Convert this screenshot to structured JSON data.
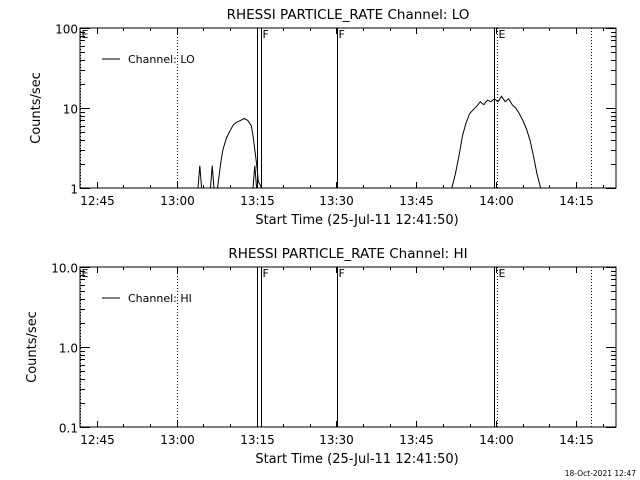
{
  "footer": {
    "timestamp": "18-Oct-2021 12:47"
  },
  "chart_data": [
    {
      "type": "line",
      "title": "RHESSI PARTICLE_RATE Channel: LO",
      "xlabel": "Start Time (25-Jul-11 12:41:50)",
      "ylabel": "Counts/sec",
      "yscale": "log",
      "xlim": [
        "12:41:50",
        "14:22:30"
      ],
      "ylim": [
        1,
        100
      ],
      "x_ticks": [
        "12:45",
        "13:00",
        "13:15",
        "13:30",
        "13:45",
        "14:00",
        "14:15"
      ],
      "y_ticks": [
        "1",
        "10",
        "100"
      ],
      "legend": {
        "entries": [
          "Channel: LO"
        ],
        "placement": "top-left"
      },
      "grid": false,
      "markers": [
        {
          "label": "E",
          "time": "12:41:50",
          "style": "dotted"
        },
        {
          "label": "",
          "time": "13:00:00",
          "style": "dotted"
        },
        {
          "label": "",
          "time": "13:15:00",
          "style": "solid"
        },
        {
          "label": "F",
          "time": "13:15:50",
          "style": "solid"
        },
        {
          "label": "F",
          "time": "13:30:10",
          "style": "solid"
        },
        {
          "label": "",
          "time": "13:59:40",
          "style": "solid"
        },
        {
          "label": "E",
          "time": "14:00:10",
          "style": "dotted"
        },
        {
          "label": "",
          "time": "14:17:50",
          "style": "dotted"
        }
      ],
      "series": [
        {
          "name": "Channel: LO",
          "segments": [
            {
              "x": [
                "13:04:00",
                "13:04:20",
                "13:04:40",
                "13:05:30",
                "13:06:20",
                "13:06:40",
                "13:07:00",
                "13:07:40",
                "13:08:00",
                "13:08:20",
                "13:08:40",
                "13:09:20",
                "13:10:00",
                "13:10:40",
                "13:11:20",
                "13:12:00",
                "13:12:40",
                "13:13:20",
                "13:14:00",
                "13:14:20",
                "13:14:40",
                "13:15:00",
                "13:15:20",
                "13:16:00"
              ],
              "y": [
                1,
                1.9,
                1,
                1,
                1,
                1.9,
                1,
                1,
                1.5,
                2.2,
                3,
                4.2,
                5.2,
                6.2,
                6.7,
                7,
                7.4,
                7,
                6,
                4.5,
                3,
                2,
                1.2,
                1
              ]
            },
            {
              "x": [
                "13:14:20",
                "13:14:40",
                "13:15:00"
              ],
              "y": [
                1,
                1.9,
                1
              ]
            },
            {
              "x": [
                "13:51:40",
                "13:52:20",
                "13:53:00",
                "13:53:40",
                "13:54:20",
                "13:55:00",
                "13:55:40",
                "13:56:20",
                "13:57:00",
                "13:57:40",
                "13:58:20",
                "13:59:00",
                "13:59:40",
                "14:00:20",
                "14:01:00",
                "14:01:40",
                "14:02:20",
                "14:03:00",
                "14:03:40",
                "14:04:20",
                "14:05:00",
                "14:05:40",
                "14:06:20",
                "14:07:00",
                "14:07:40",
                "14:08:20"
              ],
              "y": [
                1,
                1.5,
                2.5,
                4.5,
                6.5,
                8.5,
                9.5,
                10.5,
                12,
                11,
                12.5,
                12,
                13,
                12,
                14,
                12,
                13,
                11,
                10,
                8.5,
                7,
                5.5,
                4,
                2.5,
                1.5,
                1
              ]
            }
          ]
        }
      ]
    },
    {
      "type": "line",
      "title": "RHESSI PARTICLE_RATE Channel: HI",
      "xlabel": "Start Time (25-Jul-11 12:41:50)",
      "ylabel": "Counts/sec",
      "yscale": "log",
      "xlim": [
        "12:41:50",
        "14:22:30"
      ],
      "ylim": [
        0.1,
        10
      ],
      "x_ticks": [
        "12:45",
        "13:00",
        "13:15",
        "13:30",
        "13:45",
        "14:00",
        "14:15"
      ],
      "y_ticks": [
        "0.1",
        "1.0",
        "10.0"
      ],
      "legend": {
        "entries": [
          "Channel: HI"
        ],
        "placement": "top-left"
      },
      "grid": false,
      "markers": [
        {
          "label": "E",
          "time": "12:41:50",
          "style": "dotted"
        },
        {
          "label": "",
          "time": "13:00:00",
          "style": "dotted"
        },
        {
          "label": "",
          "time": "13:15:00",
          "style": "solid"
        },
        {
          "label": "F",
          "time": "13:15:50",
          "style": "solid"
        },
        {
          "label": "F",
          "time": "13:30:10",
          "style": "solid"
        },
        {
          "label": "",
          "time": "13:59:40",
          "style": "solid"
        },
        {
          "label": "E",
          "time": "14:00:10",
          "style": "dotted"
        },
        {
          "label": "",
          "time": "14:17:50",
          "style": "dotted"
        }
      ],
      "series": [
        {
          "name": "Channel: HI",
          "segments": []
        }
      ]
    }
  ]
}
